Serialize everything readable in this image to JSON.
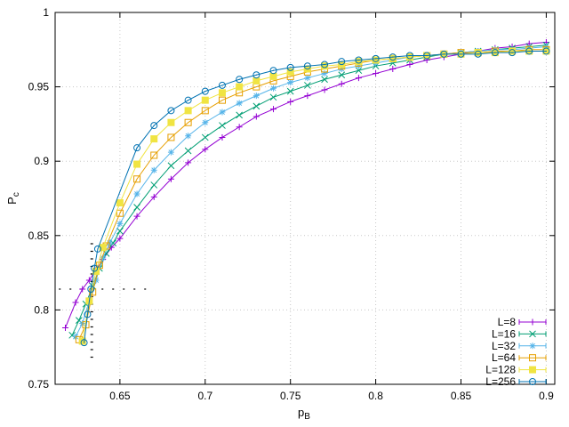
{
  "chart_data": {
    "type": "line",
    "title": "",
    "xlabel": "p_B",
    "ylabel": "P_c",
    "xlim": [
      0.612,
      0.905
    ],
    "ylim": [
      0.75,
      1.0
    ],
    "x_ticks": [
      0.65,
      0.7,
      0.75,
      0.8,
      0.85,
      0.9
    ],
    "x_tick_labels": [
      "0.65",
      "0.7",
      "0.75",
      "0.8",
      "0.85",
      "0.9"
    ],
    "y_ticks": [
      0.75,
      0.8,
      0.85,
      0.9,
      0.95,
      1.0
    ],
    "y_tick_labels": [
      "0.75",
      "0.8",
      "0.85",
      "0.9",
      "0.95",
      "1"
    ],
    "grid": true,
    "legend_position": "bottom-right",
    "critical_point": {
      "x": 0.6335,
      "y": 0.814
    },
    "series": [
      {
        "name": "L=8",
        "color": "#9400d3",
        "marker": "plus",
        "x": [
          0.618,
          0.624,
          0.628,
          0.632,
          0.636,
          0.64,
          0.645,
          0.65,
          0.66,
          0.67,
          0.68,
          0.69,
          0.7,
          0.71,
          0.72,
          0.73,
          0.74,
          0.75,
          0.76,
          0.77,
          0.78,
          0.79,
          0.8,
          0.81,
          0.82,
          0.83,
          0.84,
          0.85,
          0.86,
          0.87,
          0.88,
          0.89,
          0.9
        ],
        "y": [
          0.788,
          0.805,
          0.814,
          0.82,
          0.827,
          0.834,
          0.842,
          0.848,
          0.863,
          0.876,
          0.888,
          0.899,
          0.908,
          0.916,
          0.923,
          0.93,
          0.935,
          0.94,
          0.944,
          0.948,
          0.952,
          0.956,
          0.959,
          0.962,
          0.965,
          0.968,
          0.97,
          0.972,
          0.974,
          0.976,
          0.977,
          0.979,
          0.98
        ]
      },
      {
        "name": "L=16",
        "color": "#009e73",
        "marker": "cross",
        "x": [
          0.622,
          0.626,
          0.63,
          0.634,
          0.638,
          0.642,
          0.646,
          0.65,
          0.66,
          0.67,
          0.68,
          0.69,
          0.7,
          0.71,
          0.72,
          0.73,
          0.74,
          0.75,
          0.76,
          0.77,
          0.78,
          0.79,
          0.8,
          0.81,
          0.82,
          0.83,
          0.84,
          0.85,
          0.86,
          0.87,
          0.88,
          0.89,
          0.9
        ],
        "y": [
          0.783,
          0.793,
          0.804,
          0.816,
          0.828,
          0.838,
          0.845,
          0.853,
          0.869,
          0.884,
          0.897,
          0.907,
          0.916,
          0.924,
          0.931,
          0.937,
          0.943,
          0.947,
          0.951,
          0.955,
          0.958,
          0.961,
          0.964,
          0.966,
          0.968,
          0.97,
          0.972,
          0.973,
          0.974,
          0.975,
          0.976,
          0.977,
          0.978
        ]
      },
      {
        "name": "L=32",
        "color": "#56b4e9",
        "marker": "star",
        "x": [
          0.624,
          0.628,
          0.632,
          0.636,
          0.64,
          0.644,
          0.65,
          0.66,
          0.67,
          0.68,
          0.69,
          0.7,
          0.71,
          0.72,
          0.73,
          0.74,
          0.75,
          0.76,
          0.77,
          0.78,
          0.79,
          0.8,
          0.81,
          0.82,
          0.83,
          0.84,
          0.85,
          0.86,
          0.87,
          0.88,
          0.89,
          0.9
        ],
        "y": [
          0.782,
          0.791,
          0.806,
          0.82,
          0.835,
          0.845,
          0.858,
          0.878,
          0.894,
          0.906,
          0.917,
          0.926,
          0.933,
          0.939,
          0.944,
          0.949,
          0.953,
          0.956,
          0.959,
          0.962,
          0.964,
          0.966,
          0.968,
          0.97,
          0.971,
          0.972,
          0.973,
          0.974,
          0.975,
          0.975,
          0.976,
          0.977
        ]
      },
      {
        "name": "L=64",
        "color": "#e69f00",
        "marker": "square-open",
        "x": [
          0.626,
          0.63,
          0.634,
          0.638,
          0.642,
          0.65,
          0.66,
          0.67,
          0.68,
          0.69,
          0.7,
          0.71,
          0.72,
          0.73,
          0.74,
          0.75,
          0.76,
          0.77,
          0.78,
          0.79,
          0.8,
          0.81,
          0.82,
          0.83,
          0.84,
          0.85,
          0.86,
          0.87,
          0.88,
          0.89,
          0.9
        ],
        "y": [
          0.78,
          0.79,
          0.812,
          0.83,
          0.843,
          0.865,
          0.888,
          0.904,
          0.916,
          0.926,
          0.934,
          0.941,
          0.946,
          0.95,
          0.954,
          0.957,
          0.96,
          0.962,
          0.964,
          0.966,
          0.968,
          0.969,
          0.97,
          0.971,
          0.972,
          0.973,
          0.973,
          0.974,
          0.974,
          0.975,
          0.975
        ]
      },
      {
        "name": "L=128",
        "color": "#f0e442",
        "marker": "square-filled",
        "x": [
          0.628,
          0.632,
          0.636,
          0.64,
          0.65,
          0.66,
          0.67,
          0.68,
          0.69,
          0.7,
          0.71,
          0.72,
          0.73,
          0.74,
          0.75,
          0.76,
          0.77,
          0.78,
          0.79,
          0.8,
          0.81,
          0.82,
          0.83,
          0.84,
          0.85,
          0.86,
          0.87,
          0.88,
          0.89,
          0.9
        ],
        "y": [
          0.779,
          0.806,
          0.826,
          0.842,
          0.872,
          0.898,
          0.915,
          0.926,
          0.934,
          0.941,
          0.946,
          0.95,
          0.954,
          0.957,
          0.96,
          0.962,
          0.964,
          0.965,
          0.967,
          0.968,
          0.969,
          0.97,
          0.971,
          0.972,
          0.972,
          0.973,
          0.973,
          0.974,
          0.974,
          0.974
        ]
      },
      {
        "name": "L=256",
        "color": "#0072b2",
        "marker": "circle-open",
        "x": [
          0.629,
          0.631,
          0.633,
          0.635,
          0.637,
          0.66,
          0.67,
          0.68,
          0.69,
          0.7,
          0.71,
          0.72,
          0.73,
          0.74,
          0.75,
          0.76,
          0.77,
          0.78,
          0.79,
          0.8,
          0.81,
          0.82,
          0.83,
          0.84,
          0.85,
          0.86,
          0.87,
          0.88,
          0.89,
          0.9
        ],
        "y": [
          0.778,
          0.797,
          0.814,
          0.828,
          0.841,
          0.909,
          0.924,
          0.934,
          0.941,
          0.947,
          0.951,
          0.955,
          0.958,
          0.961,
          0.963,
          0.964,
          0.965,
          0.967,
          0.968,
          0.969,
          0.97,
          0.971,
          0.971,
          0.972,
          0.972,
          0.972,
          0.973,
          0.973,
          0.974,
          0.974
        ]
      }
    ]
  }
}
